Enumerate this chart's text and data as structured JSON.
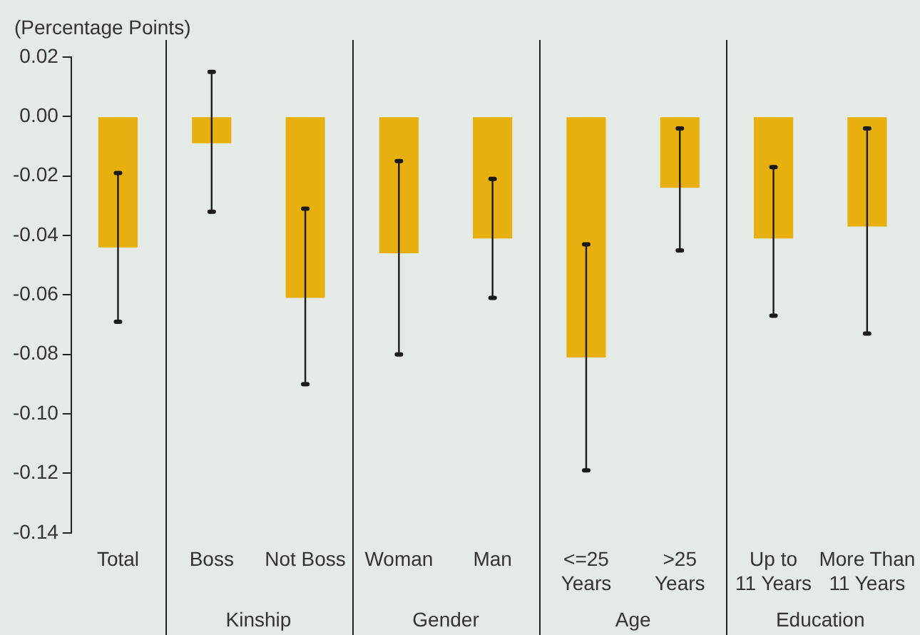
{
  "chart_data": {
    "type": "bar",
    "ylabel": "(Percentage Points)",
    "categories": [
      "Total",
      "Boss",
      "Not Boss",
      "Woman",
      "Man",
      "<=25\nYears",
      ">25\nYears",
      "Up to\n11 Years",
      "More Than\n11 Years"
    ],
    "values": [
      -0.044,
      -0.009,
      -0.061,
      -0.046,
      -0.041,
      -0.081,
      -0.024,
      -0.041,
      -0.037
    ],
    "errors": [
      [
        -0.069,
        -0.019
      ],
      [
        -0.032,
        0.015
      ],
      [
        -0.09,
        -0.031
      ],
      [
        -0.08,
        -0.015
      ],
      [
        -0.061,
        -0.021
      ],
      [
        -0.119,
        -0.043
      ],
      [
        -0.045,
        -0.004
      ],
      [
        -0.067,
        -0.017
      ],
      [
        -0.073,
        -0.004
      ]
    ],
    "color": "#e8b00f",
    "ylim": [
      -0.14,
      0.02
    ],
    "yticks": [
      {
        "value": -0.14,
        "label": "-0.14"
      },
      {
        "value": -0.12,
        "label": "-0.12"
      },
      {
        "value": -0.1,
        "label": "-0.10"
      },
      {
        "value": -0.08,
        "label": "-0.08"
      },
      {
        "value": -0.06,
        "label": "-0.06"
      },
      {
        "value": -0.04,
        "label": "-0.04"
      },
      {
        "value": -0.02,
        "label": "-0.02"
      },
      {
        "value": 0,
        "label": "0.00"
      },
      {
        "value": 0.02,
        "label": "0.02"
      }
    ],
    "annotations": [
      "Kinship",
      "Gender",
      "Age",
      "Education"
    ],
    "grid": false
  }
}
